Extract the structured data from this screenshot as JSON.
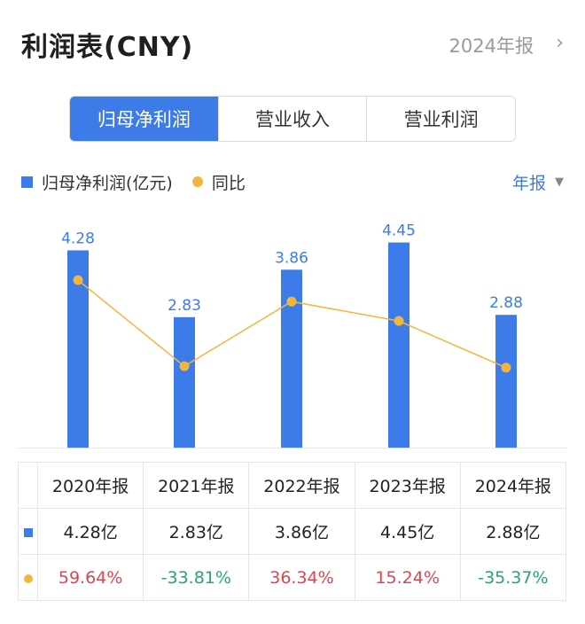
{
  "header": {
    "title": "利润表(CNY)",
    "period": "2024年报",
    "chevron": "›"
  },
  "tabs": [
    {
      "label": "归母净利润",
      "active": true
    },
    {
      "label": "营业收入",
      "active": false
    },
    {
      "label": "营业利润",
      "active": false
    }
  ],
  "legend": {
    "bar_label": "归母净利润(亿元)",
    "line_label": "同比"
  },
  "period_select": {
    "label": "年报",
    "caret": "▼"
  },
  "colors": {
    "accent": "#3d7ce8",
    "line": "#f3b53e",
    "positive": "#e0454f",
    "negative": "#27a37a"
  },
  "chart_data": {
    "type": "bar",
    "categories": [
      "2020年报",
      "2021年报",
      "2022年报",
      "2023年报",
      "2024年报"
    ],
    "series": [
      {
        "name": "归母净利润(亿元)",
        "type": "bar",
        "values": [
          4.28,
          2.83,
          3.86,
          4.45,
          2.88
        ]
      },
      {
        "name": "同比",
        "type": "line",
        "values": [
          59.64,
          -33.81,
          36.34,
          15.24,
          -35.37
        ]
      }
    ],
    "bar_labels": [
      "4.28",
      "2.83",
      "3.86",
      "4.45",
      "2.88"
    ],
    "legend_position": "top-left"
  },
  "table": {
    "headers": [
      "2020年报",
      "2021年报",
      "2022年报",
      "2023年报",
      "2024年报"
    ],
    "profit_row": [
      "4.28亿",
      "2.83亿",
      "3.86亿",
      "4.45亿",
      "2.88亿"
    ],
    "yoy_row": [
      "59.64%",
      "-33.81%",
      "36.34%",
      "15.24%",
      "-35.37%"
    ]
  }
}
